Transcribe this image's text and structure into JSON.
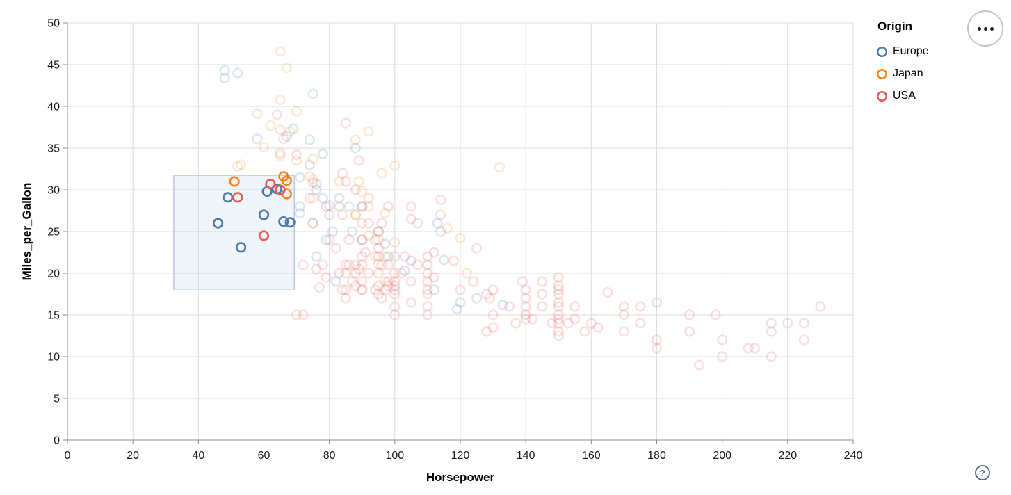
{
  "legend": {
    "title": "Origin",
    "items": [
      {
        "label": "Europe",
        "color": "#4c78a8"
      },
      {
        "label": "Japan",
        "color": "#f58518"
      },
      {
        "label": "USA",
        "color": "#e45756"
      }
    ]
  },
  "actions_menu": {
    "icon": "ellipsis"
  },
  "help": {
    "label": "?"
  },
  "chart_data": {
    "type": "scatter",
    "xlabel": "Horsepower",
    "ylabel": "Miles_per_Gallon",
    "xlim": [
      0,
      240
    ],
    "ylim": [
      0,
      50
    ],
    "x_ticks": [
      0,
      20,
      40,
      60,
      80,
      100,
      120,
      140,
      160,
      180,
      200,
      220,
      240
    ],
    "y_ticks": [
      0,
      5,
      10,
      15,
      20,
      25,
      30,
      35,
      40,
      45,
      50
    ],
    "grid": true,
    "legend_position": "top-right",
    "axis": {
      "domain_color": "#888888",
      "grid_color": "#dddddd",
      "tick_color": "#888888",
      "label_color": "#1a1a1a"
    },
    "point_style": {
      "radius": 6.3,
      "stroke_width": 2.6,
      "unselected_opacity": 0.19,
      "selected_opacity": 1
    },
    "brush": {
      "x0": 32.5,
      "x1": 69.3,
      "y0": 18.1,
      "y1": 31.75,
      "fill": "#6b93d6",
      "fill_opacity": 0.1,
      "stroke": "#b4c7ef"
    },
    "series": [
      {
        "name": "Europe",
        "color": "#4c78a8",
        "points": [
          [
            46,
            26,
            1
          ],
          [
            49,
            29.1,
            1
          ],
          [
            53,
            23.1,
            1
          ],
          [
            60,
            27,
            1
          ],
          [
            61,
            29.8,
            1
          ],
          [
            64,
            30.1,
            1
          ],
          [
            66,
            26.2,
            1
          ],
          [
            68,
            26.1,
            1
          ],
          [
            48,
            43.4
          ],
          [
            48,
            44.3
          ],
          [
            52,
            44
          ],
          [
            75,
            41.5
          ],
          [
            74,
            36
          ],
          [
            67,
            36.4
          ],
          [
            69,
            37.3
          ],
          [
            58,
            36.1
          ],
          [
            78,
            34.3
          ],
          [
            88,
            35
          ],
          [
            71,
            31.5
          ],
          [
            74,
            33
          ],
          [
            76,
            30.7
          ],
          [
            76,
            30
          ],
          [
            80,
            28.1
          ],
          [
            71,
            28
          ],
          [
            83,
            29
          ],
          [
            86,
            28
          ],
          [
            90,
            28
          ],
          [
            78,
            29
          ],
          [
            87,
            25
          ],
          [
            90,
            24
          ],
          [
            95,
            25
          ],
          [
            81,
            25
          ],
          [
            75,
            26
          ],
          [
            79,
            24
          ],
          [
            76,
            22
          ],
          [
            98,
            22
          ],
          [
            97,
            23.5
          ],
          [
            103,
            20.3
          ],
          [
            105,
            21.5
          ],
          [
            110,
            21
          ],
          [
            115,
            21.6
          ],
          [
            112,
            18
          ],
          [
            82,
            19
          ],
          [
            113,
            26
          ],
          [
            114,
            25
          ],
          [
            71,
            27.2
          ],
          [
            120,
            16.5
          ],
          [
            119,
            15.7
          ],
          [
            125,
            17
          ],
          [
            133,
            16.2
          ]
        ]
      },
      {
        "name": "Japan",
        "color": "#f58518",
        "points": [
          [
            51,
            31,
            1
          ],
          [
            66,
            31.6,
            1
          ],
          [
            67,
            31.1,
            1
          ],
          [
            67,
            29.5,
            1
          ],
          [
            65,
            46.6
          ],
          [
            67,
            44.6
          ],
          [
            65,
            40.8
          ],
          [
            70,
            39.4
          ],
          [
            58,
            39.1
          ],
          [
            62,
            37.7
          ],
          [
            65,
            37.2
          ],
          [
            68,
            37
          ],
          [
            92,
            37
          ],
          [
            88,
            36
          ],
          [
            75,
            33.7
          ],
          [
            70,
            33.5
          ],
          [
            53,
            33
          ],
          [
            52,
            32.8
          ],
          [
            100,
            32.9
          ],
          [
            96,
            32
          ],
          [
            83,
            31
          ],
          [
            89,
            31
          ],
          [
            75,
            31.3
          ],
          [
            74,
            31.6
          ],
          [
            90,
            29.8
          ],
          [
            88,
            27
          ],
          [
            88,
            27
          ],
          [
            75,
            29
          ],
          [
            92,
            28
          ],
          [
            97,
            27.2
          ],
          [
            75,
            26
          ],
          [
            92,
            24.5
          ],
          [
            116,
            25.4
          ],
          [
            120,
            24.2
          ],
          [
            95,
            24
          ],
          [
            100,
            23.7
          ],
          [
            94,
            22
          ],
          [
            97,
            22
          ],
          [
            95,
            21.1
          ],
          [
            122,
            20
          ],
          [
            97,
            19
          ],
          [
            90,
            18
          ],
          [
            132,
            32.7
          ],
          [
            65,
            34.1
          ],
          [
            60,
            35.1
          ]
        ]
      },
      {
        "name": "USA",
        "color": "#e45756",
        "points": [
          [
            52,
            29.1,
            1
          ],
          [
            60,
            24.5,
            1
          ],
          [
            62,
            30.7,
            1
          ],
          [
            65,
            30,
            1
          ],
          [
            85,
            38
          ],
          [
            64,
            39
          ],
          [
            66,
            36.1
          ],
          [
            65,
            34.4
          ],
          [
            70,
            34.2
          ],
          [
            89,
            33.5
          ],
          [
            84,
            32
          ],
          [
            85,
            31
          ],
          [
            75,
            30.9
          ],
          [
            88,
            30
          ],
          [
            92,
            29
          ],
          [
            79,
            28
          ],
          [
            98,
            28
          ],
          [
            90,
            28
          ],
          [
            105,
            28
          ],
          [
            105,
            26.5
          ],
          [
            90,
            26
          ],
          [
            92,
            26
          ],
          [
            96,
            26
          ],
          [
            107,
            26
          ],
          [
            95,
            25
          ],
          [
            74,
            29
          ],
          [
            80,
            27
          ],
          [
            84,
            27
          ],
          [
            83,
            28
          ],
          [
            114,
            28.8
          ],
          [
            114,
            27
          ],
          [
            86,
            24
          ],
          [
            94,
            24
          ],
          [
            80,
            24
          ],
          [
            82,
            23
          ],
          [
            90,
            24
          ],
          [
            103,
            22
          ],
          [
            112,
            22.5
          ],
          [
            125,
            23
          ],
          [
            124,
            19
          ],
          [
            72,
            21
          ],
          [
            76,
            20.5
          ],
          [
            78,
            21
          ],
          [
            79,
            19.5
          ],
          [
            77,
            18.3
          ],
          [
            83,
            20
          ],
          [
            84,
            18
          ],
          [
            85,
            21
          ],
          [
            85,
            20
          ],
          [
            85,
            18
          ],
          [
            85,
            17
          ],
          [
            86,
            21
          ],
          [
            87,
            19
          ],
          [
            88,
            21
          ],
          [
            88,
            20
          ],
          [
            88,
            18.5
          ],
          [
            89,
            20.5
          ],
          [
            90,
            22
          ],
          [
            90,
            21
          ],
          [
            90,
            19
          ],
          [
            90,
            18
          ],
          [
            91,
            22.5
          ],
          [
            92,
            20
          ],
          [
            94,
            18
          ],
          [
            95,
            23
          ],
          [
            95,
            22
          ],
          [
            95,
            20
          ],
          [
            95,
            18.5
          ],
          [
            95,
            17.5
          ],
          [
            96,
            21
          ],
          [
            96,
            17
          ],
          [
            97,
            18
          ],
          [
            98,
            21
          ],
          [
            98,
            19
          ],
          [
            98,
            18.5
          ],
          [
            100,
            22
          ],
          [
            100,
            20
          ],
          [
            100,
            19
          ],
          [
            100,
            18.5
          ],
          [
            100,
            18
          ],
          [
            100,
            17.5
          ],
          [
            100,
            16
          ],
          [
            100,
            15
          ],
          [
            102,
            20
          ],
          [
            105,
            19
          ],
          [
            105,
            16.5
          ],
          [
            107,
            21
          ],
          [
            110,
            22
          ],
          [
            110,
            20
          ],
          [
            110,
            19
          ],
          [
            110,
            18
          ],
          [
            110,
            17.5
          ],
          [
            110,
            16
          ],
          [
            110,
            15
          ],
          [
            112,
            19.5
          ],
          [
            118,
            21.5
          ],
          [
            70,
            15
          ],
          [
            72,
            15
          ],
          [
            120,
            18
          ],
          [
            128,
            17.5
          ],
          [
            129,
            17
          ],
          [
            130,
            18
          ],
          [
            130,
            15
          ],
          [
            128,
            13
          ],
          [
            130,
            13.5
          ],
          [
            135,
            16
          ],
          [
            137,
            14
          ],
          [
            139,
            19
          ],
          [
            140,
            18
          ],
          [
            140,
            17
          ],
          [
            140,
            16
          ],
          [
            140,
            15
          ],
          [
            140,
            14.5
          ],
          [
            142,
            14.5
          ],
          [
            145,
            19
          ],
          [
            145,
            17.5
          ],
          [
            145,
            16
          ],
          [
            148,
            14
          ],
          [
            150,
            19.5
          ],
          [
            150,
            18.5
          ],
          [
            150,
            18
          ],
          [
            150,
            17.5
          ],
          [
            150,
            16.5
          ],
          [
            150,
            16
          ],
          [
            150,
            15
          ],
          [
            150,
            14.5
          ],
          [
            150,
            14
          ],
          [
            150,
            13
          ],
          [
            150,
            12.5
          ],
          [
            153,
            14
          ],
          [
            155,
            16
          ],
          [
            155,
            14.5
          ],
          [
            158,
            13
          ],
          [
            160,
            14
          ],
          [
            162,
            13.5
          ],
          [
            165,
            17.7
          ],
          [
            170,
            16
          ],
          [
            170,
            15
          ],
          [
            170,
            13
          ],
          [
            175,
            16
          ],
          [
            175,
            14
          ],
          [
            180,
            16.5
          ],
          [
            180,
            12
          ],
          [
            180,
            11
          ],
          [
            190,
            15
          ],
          [
            190,
            13
          ],
          [
            193,
            9
          ],
          [
            198,
            15
          ],
          [
            200,
            12
          ],
          [
            200,
            10
          ],
          [
            208,
            11
          ],
          [
            210,
            11
          ],
          [
            215,
            14
          ],
          [
            215,
            13
          ],
          [
            215,
            10
          ],
          [
            220,
            14
          ],
          [
            225,
            14
          ],
          [
            225,
            12
          ],
          [
            230,
            16
          ]
        ]
      }
    ]
  }
}
